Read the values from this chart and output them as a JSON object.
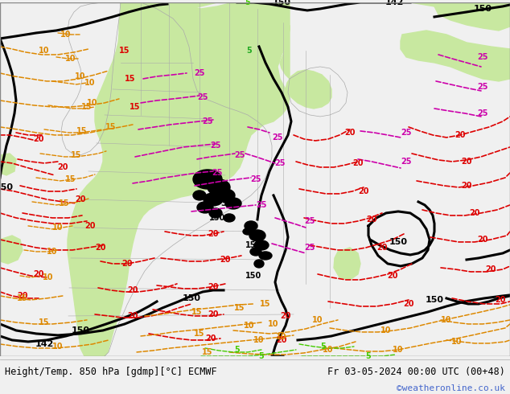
{
  "title_left": "Height/Temp. 850 hPa [gdmp][°C] ECMWF",
  "title_right": "Fr 03-05-2024 00:00 UTC (00+48)",
  "credit": "©weatheronline.co.uk",
  "bg_color": "#dcdcdc",
  "green_color": "#c8e8a0",
  "bottom_bar_color": "#f0f0f0",
  "credit_color": "#4466cc",
  "figsize": [
    6.34,
    4.9
  ],
  "dpi": 100
}
